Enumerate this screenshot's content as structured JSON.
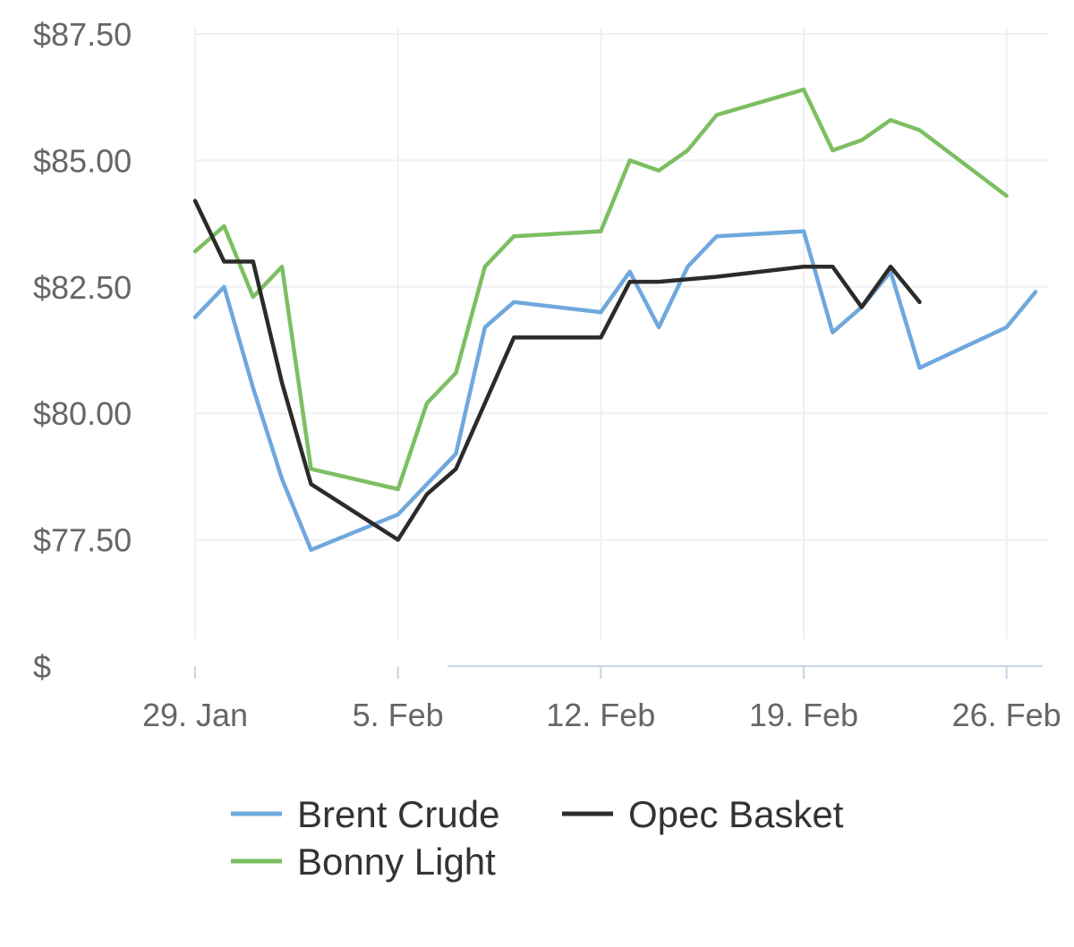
{
  "chart_data": {
    "type": "line",
    "y_ticks": [
      "$87.50",
      "$85.00",
      "$82.50",
      "$80.00",
      "$77.50",
      "$"
    ],
    "y_tick_values": [
      87.5,
      85.0,
      82.5,
      80.0,
      77.5,
      75.0
    ],
    "ylim": [
      75.0,
      87.5
    ],
    "x_ticks": [
      "29. Jan",
      "5. Feb",
      "12. Feb",
      "19. Feb",
      "26. Feb"
    ],
    "x_tick_values": [
      "2024-01-29",
      "2024-02-05",
      "2024-02-12",
      "2024-02-19",
      "2024-02-26"
    ],
    "xlim": [
      "2024-01-29",
      "2024-02-27"
    ],
    "grid": true,
    "legend_position": "bottom",
    "series": [
      {
        "name": "Brent Crude",
        "color": "#6fa8dc",
        "points": [
          [
            "2024-01-29",
            81.9
          ],
          [
            "2024-01-30",
            82.5
          ],
          [
            "2024-01-31",
            80.5
          ],
          [
            "2024-02-01",
            78.7
          ],
          [
            "2024-02-02",
            77.3
          ],
          [
            "2024-02-05",
            78.0
          ],
          [
            "2024-02-06",
            78.6
          ],
          [
            "2024-02-07",
            79.2
          ],
          [
            "2024-02-08",
            81.7
          ],
          [
            "2024-02-09",
            82.2
          ],
          [
            "2024-02-12",
            82.0
          ],
          [
            "2024-02-13",
            82.8
          ],
          [
            "2024-02-14",
            81.7
          ],
          [
            "2024-02-15",
            82.9
          ],
          [
            "2024-02-16",
            83.5
          ],
          [
            "2024-02-19",
            83.6
          ],
          [
            "2024-02-20",
            81.6
          ],
          [
            "2024-02-21",
            82.1
          ],
          [
            "2024-02-22",
            82.8
          ],
          [
            "2024-02-23",
            80.9
          ],
          [
            "2024-02-26",
            81.7
          ],
          [
            "2024-02-27",
            82.4
          ]
        ]
      },
      {
        "name": "Opec Basket",
        "color": "#2b2b2b",
        "points": [
          [
            "2024-01-29",
            84.2
          ],
          [
            "2024-01-30",
            83.0
          ],
          [
            "2024-01-31",
            83.0
          ],
          [
            "2024-02-01",
            80.6
          ],
          [
            "2024-02-02",
            78.6
          ],
          [
            "2024-02-05",
            77.5
          ],
          [
            "2024-02-06",
            78.4
          ],
          [
            "2024-02-07",
            78.9
          ],
          [
            "2024-02-08",
            80.2
          ],
          [
            "2024-02-09",
            81.5
          ],
          [
            "2024-02-12",
            81.5
          ],
          [
            "2024-02-13",
            82.6
          ],
          [
            "2024-02-14",
            82.6
          ],
          [
            "2024-02-16",
            82.7
          ],
          [
            "2024-02-19",
            82.9
          ],
          [
            "2024-02-20",
            82.9
          ],
          [
            "2024-02-21",
            82.1
          ],
          [
            "2024-02-22",
            82.9
          ],
          [
            "2024-02-23",
            82.2
          ]
        ]
      },
      {
        "name": "Bonny Light",
        "color": "#7cbf62",
        "points": [
          [
            "2024-01-29",
            83.2
          ],
          [
            "2024-01-30",
            83.7
          ],
          [
            "2024-01-31",
            82.3
          ],
          [
            "2024-02-01",
            82.9
          ],
          [
            "2024-02-02",
            78.9
          ],
          [
            "2024-02-05",
            78.5
          ],
          [
            "2024-02-06",
            80.2
          ],
          [
            "2024-02-07",
            80.8
          ],
          [
            "2024-02-08",
            82.9
          ],
          [
            "2024-02-09",
            83.5
          ],
          [
            "2024-02-12",
            83.6
          ],
          [
            "2024-02-13",
            85.0
          ],
          [
            "2024-02-14",
            84.8
          ],
          [
            "2024-02-15",
            85.2
          ],
          [
            "2024-02-16",
            85.9
          ],
          [
            "2024-02-19",
            86.4
          ],
          [
            "2024-02-20",
            85.2
          ],
          [
            "2024-02-21",
            85.4
          ],
          [
            "2024-02-22",
            85.8
          ],
          [
            "2024-02-23",
            85.6
          ],
          [
            "2024-02-26",
            84.3
          ]
        ]
      }
    ]
  }
}
